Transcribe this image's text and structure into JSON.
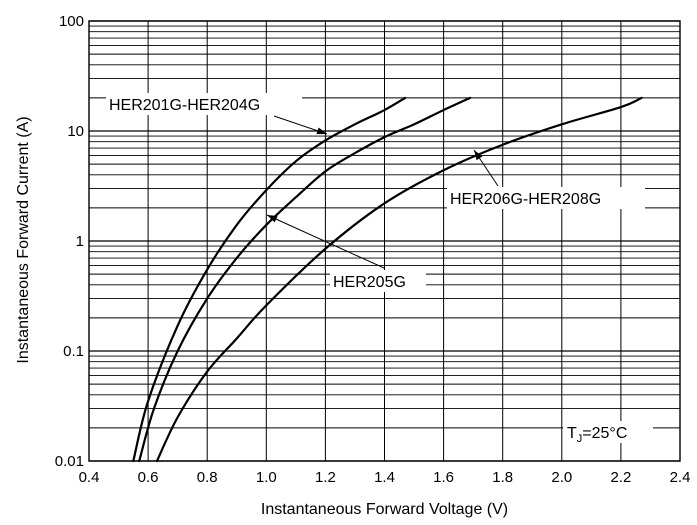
{
  "chart_data": {
    "type": "line",
    "title": "",
    "xlabel": "Instantaneous Forward Voltage (V)",
    "ylabel": "Instantaneous Forward Current (A)",
    "xlim": [
      0.4,
      2.4
    ],
    "ylim": [
      0.01,
      100
    ],
    "yscale": "log",
    "grid": true,
    "x_ticks": [
      "0.4",
      "0.6",
      "0.8",
      "1.0",
      "1.2",
      "1.4",
      "1.6",
      "1.8",
      "2.0",
      "2.2",
      "2.4"
    ],
    "y_ticks": [
      "0.01",
      "0.1",
      "1",
      "10",
      "100"
    ],
    "series": [
      {
        "name": "HER201G-HER204G",
        "x": [
          0.55,
          0.6,
          0.7,
          0.8,
          0.9,
          1.0,
          1.1,
          1.2,
          1.3,
          1.4,
          1.47
        ],
        "y": [
          0.01,
          0.035,
          0.17,
          0.55,
          1.4,
          2.9,
          5.3,
          8.2,
          11.5,
          15.5,
          20
        ]
      },
      {
        "name": "HER205G",
        "x": [
          0.57,
          0.62,
          0.7,
          0.8,
          0.9,
          1.0,
          1.1,
          1.2,
          1.3,
          1.4,
          1.5,
          1.6,
          1.69
        ],
        "y": [
          0.01,
          0.03,
          0.1,
          0.3,
          0.7,
          1.4,
          2.5,
          4.3,
          6.3,
          8.8,
          11.5,
          15.5,
          20
        ]
      },
      {
        "name": "HER206G-HER208G",
        "x": [
          0.63,
          0.7,
          0.8,
          0.9,
          1.0,
          1.2,
          1.4,
          1.6,
          1.8,
          2.0,
          2.2,
          2.27
        ],
        "y": [
          0.01,
          0.025,
          0.065,
          0.13,
          0.26,
          0.85,
          2.2,
          4.4,
          7.5,
          11.5,
          16.5,
          20
        ]
      }
    ],
    "annotations": [
      {
        "text": "HER201G-HER204G",
        "series": "HER201G-HER204G"
      },
      {
        "text": "HER205G",
        "series": "HER205G"
      },
      {
        "text": "HER206G-HER208G",
        "series": "HER206G-HER208G"
      }
    ],
    "condition": {
      "main": "T",
      "sub": "J",
      "rest": "=25°C"
    }
  }
}
